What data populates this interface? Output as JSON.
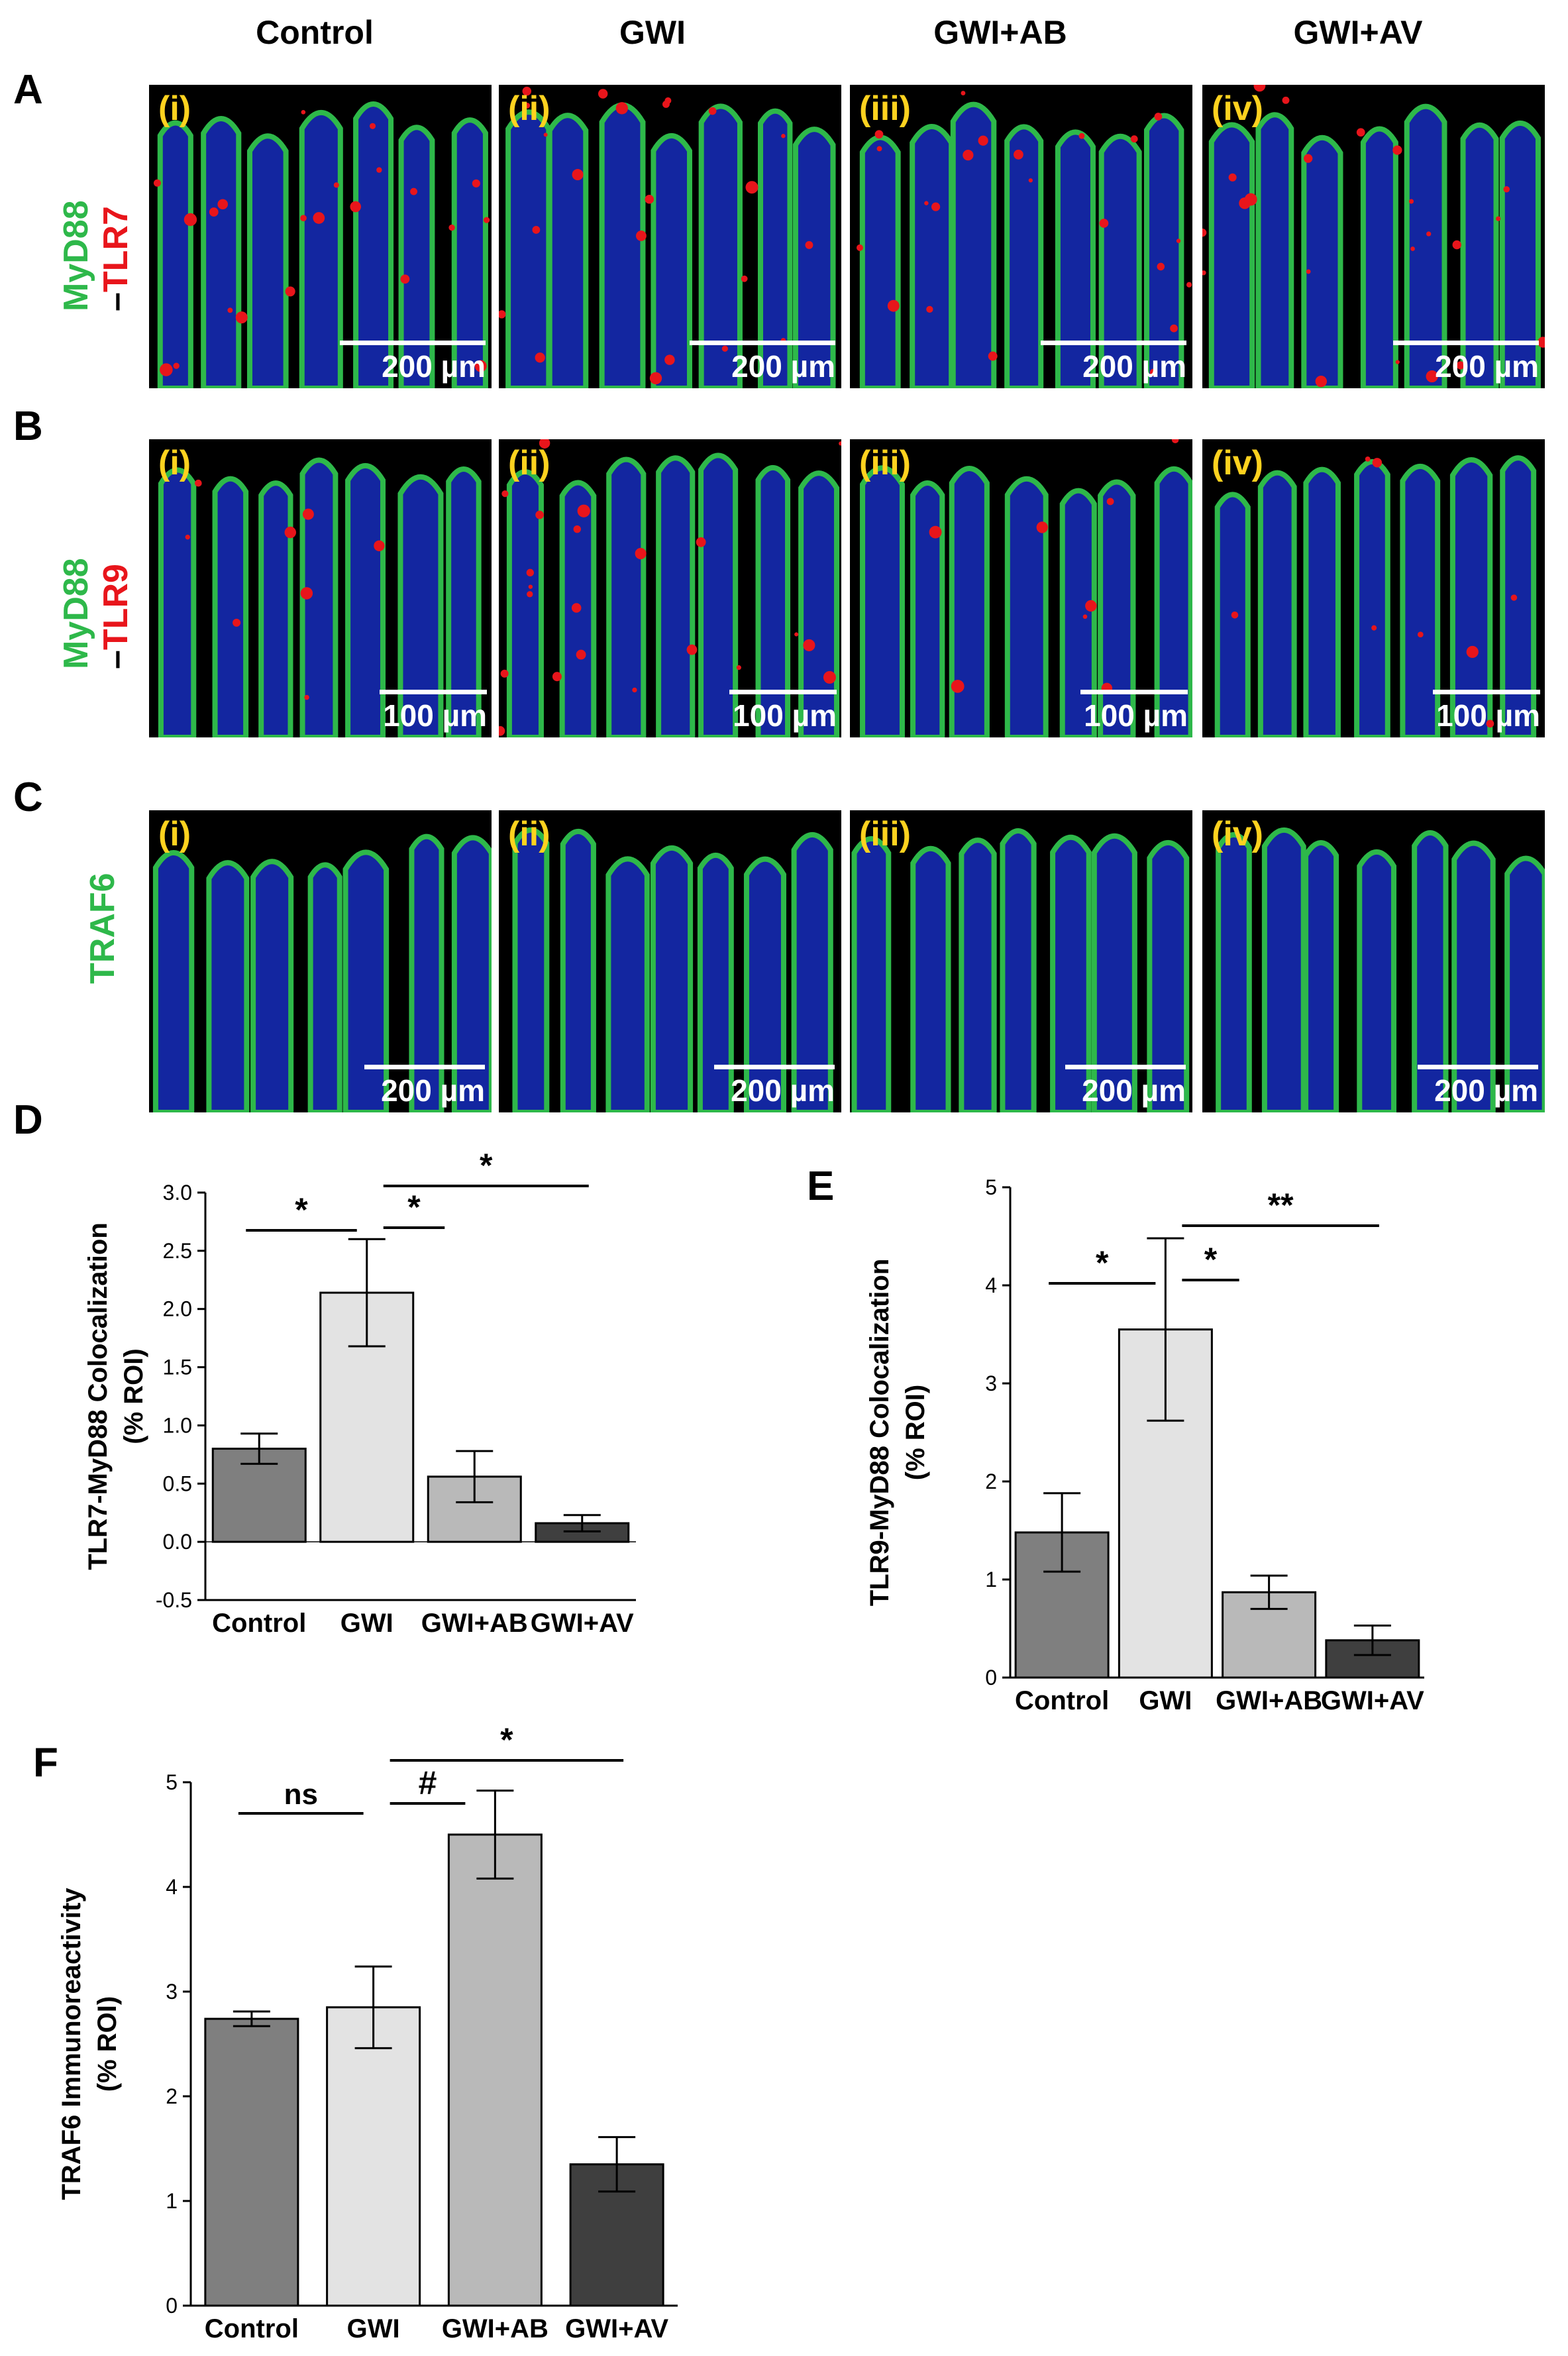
{
  "column_headers": [
    "Control",
    "GWI",
    "GWI+AB",
    "GWI+AV"
  ],
  "panel_letters": {
    "a": "A",
    "b": "B",
    "c": "C",
    "d": "D",
    "e": "E",
    "f": "F"
  },
  "row_labels": {
    "a": {
      "green": "MyD88",
      "dash": "–",
      "red": "TLR7"
    },
    "b": {
      "green": "MyD88",
      "dash": "–",
      "red": "TLR9"
    },
    "c": {
      "green": "TRAF6"
    }
  },
  "roman": [
    "(i)",
    "(ii)",
    "(iii)",
    "(iv)"
  ],
  "scale_labels": {
    "a": "200 µm",
    "b": "100 µm",
    "c": "200 µm"
  },
  "colors": {
    "bar_control": "#7f7f7f",
    "bar_gwi": "#e3e3e3",
    "bar_gwi_ab": "#b9b9b9",
    "bar_gwi_av": "#3f3f3f",
    "stain_green": "#2eb84a",
    "stain_red": "#e8151b",
    "stain_blue": "#1a33d6",
    "roman_label": "#ffd21f"
  },
  "chart_data": [
    {
      "panel": "D",
      "type": "bar",
      "categories": [
        "Control",
        "GWI",
        "GWI+AB",
        "GWI+AV"
      ],
      "values": [
        0.8,
        2.14,
        0.56,
        0.16
      ],
      "errors": [
        0.13,
        0.46,
        0.22,
        0.07
      ],
      "ylabel": "TLR7-MyD88 Colocalization\n(% ROI)",
      "ylim": [
        -0.5,
        3.0
      ],
      "yticks": [
        -0.5,
        0.0,
        0.5,
        1.0,
        1.5,
        2.0,
        2.5,
        3.0
      ],
      "ytick_labels": [
        "-0.5",
        "0.0",
        "0.5",
        "1.0",
        "1.5",
        "2.0",
        "2.5",
        "3.0"
      ],
      "significance": [
        {
          "from": 0,
          "to": 1,
          "label": "*"
        },
        {
          "from": 1,
          "to": 2,
          "label": "*"
        },
        {
          "from": 1,
          "to": 3,
          "label": "*"
        }
      ]
    },
    {
      "panel": "E",
      "type": "bar",
      "categories": [
        "Control",
        "GWI",
        "GWI+AB",
        "GWI+AV"
      ],
      "values": [
        1.48,
        3.55,
        0.87,
        0.38
      ],
      "errors": [
        0.4,
        0.93,
        0.17,
        0.15
      ],
      "ylabel": "TLR9-MyD88 Colocalization\n(% ROI)",
      "ylim": [
        0,
        5
      ],
      "yticks": [
        0,
        1,
        2,
        3,
        4,
        5
      ],
      "ytick_labels": [
        "0",
        "1",
        "2",
        "3",
        "4",
        "5"
      ],
      "significance": [
        {
          "from": 0,
          "to": 1,
          "label": "*"
        },
        {
          "from": 1,
          "to": 2,
          "label": "*"
        },
        {
          "from": 1,
          "to": 3,
          "label": "**"
        }
      ]
    },
    {
      "panel": "F",
      "type": "bar",
      "categories": [
        "Control",
        "GWI",
        "GWI+AB",
        "GWI+AV"
      ],
      "values": [
        2.74,
        2.85,
        4.5,
        1.35
      ],
      "errors": [
        0.07,
        0.39,
        0.42,
        0.26
      ],
      "ylabel": "TRAF6 Immunoreactivity\n(% ROI)",
      "ylim": [
        0,
        5
      ],
      "yticks": [
        0,
        1,
        2,
        3,
        4,
        5
      ],
      "ytick_labels": [
        "0",
        "1",
        "2",
        "3",
        "4",
        "5"
      ],
      "significance": [
        {
          "from": 0,
          "to": 1,
          "label": "ns"
        },
        {
          "from": 1,
          "to": 2,
          "label": "#"
        },
        {
          "from": 1,
          "to": 3,
          "label": "*"
        }
      ]
    }
  ]
}
